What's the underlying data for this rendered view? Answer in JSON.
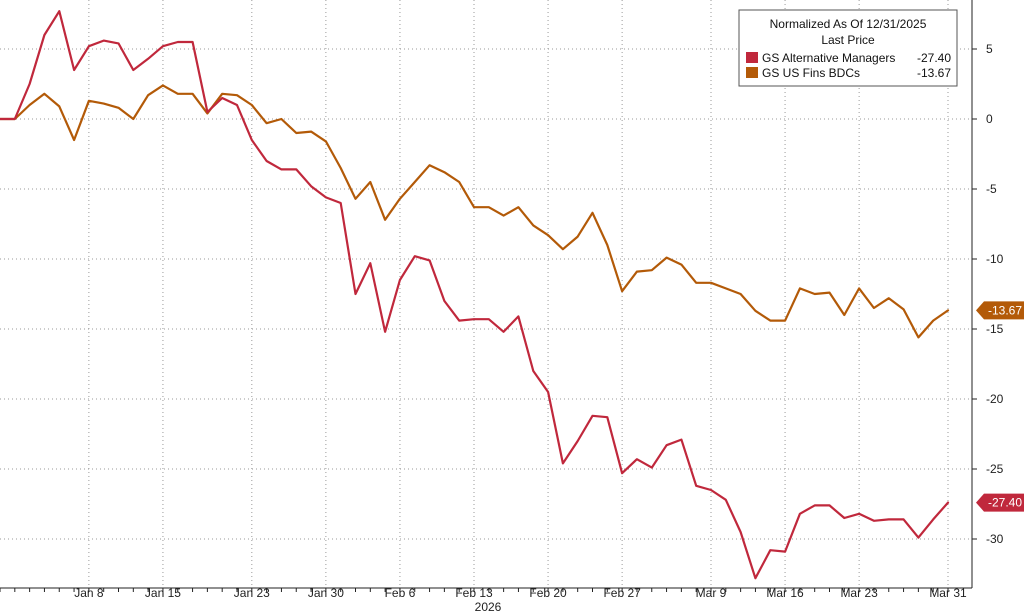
{
  "chart_data": {
    "type": "line",
    "title": "",
    "xlabel": "2026",
    "ylabel": "",
    "ylim": [
      -33.5,
      8.5
    ],
    "y_ticks": [
      5,
      0,
      -5,
      -10,
      -15,
      -20,
      -25,
      -30
    ],
    "y_tick_labels": [
      "5",
      "0",
      "-5",
      "-10",
      "-15",
      "-20",
      "-25",
      "-30"
    ],
    "x_tick_labels": [
      {
        "label": "Jan 8",
        "index": 6
      },
      {
        "label": "Jan 15",
        "index": 11
      },
      {
        "label": "Jan 23",
        "index": 17
      },
      {
        "label": "Jan 30",
        "index": 22
      },
      {
        "label": "Feb 6",
        "index": 27
      },
      {
        "label": "Feb 13",
        "index": 32
      },
      {
        "label": "Feb 20",
        "index": 37
      },
      {
        "label": "Feb 27",
        "index": 42
      },
      {
        "label": "Mar 9",
        "index": 48
      },
      {
        "label": "Mar 16",
        "index": 53
      },
      {
        "label": "Mar 23",
        "index": 58
      },
      {
        "label": "Mar 31",
        "index": 64
      }
    ],
    "x_count": 65,
    "grid": true,
    "legend_position": "top-right",
    "legend": {
      "header_line1": "Normalized As Of 12/31/2025",
      "header_line2": "Last Price"
    },
    "series": [
      {
        "name": "GS Alternative Managers",
        "color": "#c0283c",
        "last_value": "-27.40",
        "values": [
          0,
          0,
          2.5,
          6,
          7.7,
          3.5,
          5.2,
          5.6,
          5.4,
          3.5,
          4.3,
          5.2,
          5.5,
          5.5,
          0.5,
          1.5,
          1,
          -1.5,
          -3,
          -3.6,
          -3.6,
          -4.8,
          -5.6,
          -6,
          -12.5,
          -10.3,
          -15.2,
          -11.5,
          -9.8,
          -10.1,
          -13,
          -14.4,
          -14.3,
          -14.3,
          -15.2,
          -14.1,
          -18,
          -19.5,
          -24.6,
          -23,
          -21.2,
          -21.3,
          -25.3,
          -24.3,
          -24.9,
          -23.3,
          -22.9,
          -26.2,
          -26.5,
          -27.2,
          -29.5,
          -32.8,
          -30.8,
          -30.9,
          -28.2,
          -27.6,
          -27.6,
          -28.5,
          -28.2,
          -28.7,
          -28.6,
          -28.6,
          -29.9,
          -28.6,
          -27.4
        ]
      },
      {
        "name": "GS US Fins BDCs",
        "color": "#b35a08",
        "last_value": "-13.67",
        "values": [
          0,
          0,
          1,
          1.8,
          0.9,
          -1.5,
          1.3,
          1.1,
          0.8,
          0,
          1.7,
          2.4,
          1.8,
          1.8,
          0.4,
          1.8,
          1.7,
          1,
          -0.3,
          0,
          -1,
          -0.9,
          -1.6,
          -3.5,
          -5.7,
          -4.5,
          -7.2,
          -5.7,
          -4.5,
          -3.3,
          -3.8,
          -4.5,
          -6.3,
          -6.3,
          -6.9,
          -6.3,
          -7.6,
          -8.3,
          -9.3,
          -8.4,
          -6.7,
          -9,
          -12.3,
          -10.9,
          -10.8,
          -9.9,
          -10.4,
          -11.7,
          -11.7,
          -12.1,
          -12.5,
          -13.7,
          -14.4,
          -14.4,
          -12.1,
          -12.5,
          -12.4,
          -14,
          -12.1,
          -13.5,
          -12.8,
          -13.6,
          -15.6,
          -14.4,
          -13.67
        ]
      }
    ]
  }
}
